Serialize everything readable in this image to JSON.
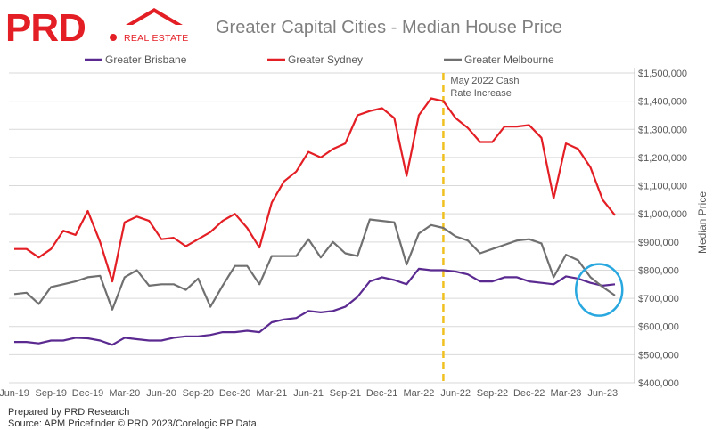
{
  "brand": {
    "name": "PRD",
    "tagline": "REAL ESTATE",
    "color": "#e31e24"
  },
  "footer": {
    "line1": "Prepared by PRD Research",
    "line2": "Source: APM Pricefinder © PRD 2023/Corelogic RP Data."
  },
  "chart_data": {
    "type": "line",
    "title": "Greater Capital Cities - Median House Price",
    "xlabel": "",
    "ylabel": "Median Price",
    "ylim": [
      400000,
      1500000
    ],
    "y_ticks": [
      "$400,000",
      "$500,000",
      "$600,000",
      "$700,000",
      "$800,000",
      "$900,000",
      "$1,000,000",
      "$1,100,000",
      "$1,200,000",
      "$1,300,000",
      "$1,400,000",
      "$1,500,000"
    ],
    "x_ticks": [
      "Jun-19",
      "Sep-19",
      "Dec-19",
      "Mar-20",
      "Jun-20",
      "Sep-20",
      "Dec-20",
      "Mar-21",
      "Jun-21",
      "Sep-21",
      "Dec-21",
      "Mar-22",
      "Jun-22",
      "Sep-22",
      "Dec-22",
      "Mar-23",
      "Jun-23"
    ],
    "grid": "horizontal",
    "legend_position": "top",
    "annotation": {
      "line1": "May 2022 Cash",
      "line2": "Rate Increase",
      "at_index": 35,
      "color": "#f0c020"
    },
    "highlight_circle": {
      "target": "latest values",
      "color": "#29a8e0"
    },
    "series": [
      {
        "name": "Greater Brisbane",
        "color": "#5b2a91",
        "values": [
          545000,
          545000,
          540000,
          550000,
          550000,
          560000,
          558000,
          550000,
          535000,
          560000,
          555000,
          550000,
          550000,
          560000,
          565000,
          565000,
          570000,
          580000,
          580000,
          585000,
          580000,
          615000,
          625000,
          630000,
          655000,
          650000,
          655000,
          670000,
          705000,
          760000,
          775000,
          765000,
          750000,
          805000,
          800000,
          800000,
          795000,
          785000,
          760000,
          760000,
          775000,
          775000,
          760000,
          755000,
          750000,
          778000,
          770000,
          755000,
          745000,
          750000
        ]
      },
      {
        "name": "Greater Sydney",
        "color": "#e31e24",
        "values": [
          875000,
          875000,
          845000,
          875000,
          940000,
          925000,
          1010000,
          900000,
          760000,
          970000,
          990000,
          975000,
          910000,
          915000,
          885000,
          910000,
          935000,
          975000,
          1000000,
          950000,
          880000,
          1040000,
          1115000,
          1150000,
          1220000,
          1200000,
          1230000,
          1250000,
          1350000,
          1365000,
          1375000,
          1340000,
          1135000,
          1350000,
          1410000,
          1400000,
          1340000,
          1305000,
          1255000,
          1255000,
          1310000,
          1310000,
          1315000,
          1270000,
          1055000,
          1250000,
          1230000,
          1165000,
          1050000,
          995000
        ]
      },
      {
        "name": "Greater Melbourne",
        "color": "#707070",
        "values": [
          715000,
          720000,
          680000,
          740000,
          750000,
          760000,
          775000,
          780000,
          660000,
          775000,
          800000,
          745000,
          750000,
          750000,
          730000,
          770000,
          670000,
          745000,
          815000,
          815000,
          750000,
          850000,
          850000,
          850000,
          910000,
          845000,
          900000,
          860000,
          850000,
          980000,
          975000,
          970000,
          820000,
          930000,
          960000,
          950000,
          920000,
          905000,
          860000,
          875000,
          890000,
          905000,
          910000,
          895000,
          775000,
          855000,
          835000,
          775000,
          740000,
          710000
        ]
      }
    ]
  }
}
